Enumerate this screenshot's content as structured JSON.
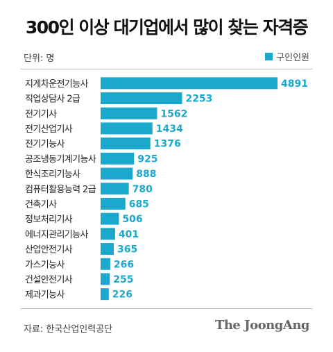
{
  "title": "300인 이상 대기업에서 많이 찾는 자격증",
  "unit_label": "단위: 명",
  "legend_label": "구인인원",
  "source": "자료: 한국산업인력공단",
  "logo": "The JoongAng",
  "colors": {
    "bar": "#1aa8cc",
    "value_text": "#1aa8cc"
  },
  "chart_data": {
    "type": "bar",
    "orientation": "horizontal",
    "title": "300인 이상 대기업에서 많이 찾는 자격증",
    "unit": "명",
    "categories": [
      "지게차운전기능사",
      "직업상담사 2급",
      "전기기사",
      "전기산업기사",
      "전기기능사",
      "공조냉동기계기능사",
      "한식조리기능사",
      "컴퓨터활용능력 2급",
      "건축기사",
      "정보처리기사",
      "에너지관리기능사",
      "산업안전기사",
      "가스기능사",
      "건설안전기사",
      "제과기능사"
    ],
    "series": [
      {
        "name": "구인인원",
        "values": [
          4891,
          2253,
          1562,
          1434,
          1376,
          925,
          888,
          780,
          685,
          506,
          401,
          365,
          266,
          255,
          226
        ]
      }
    ],
    "legend_position": "top-right",
    "grid": false
  }
}
